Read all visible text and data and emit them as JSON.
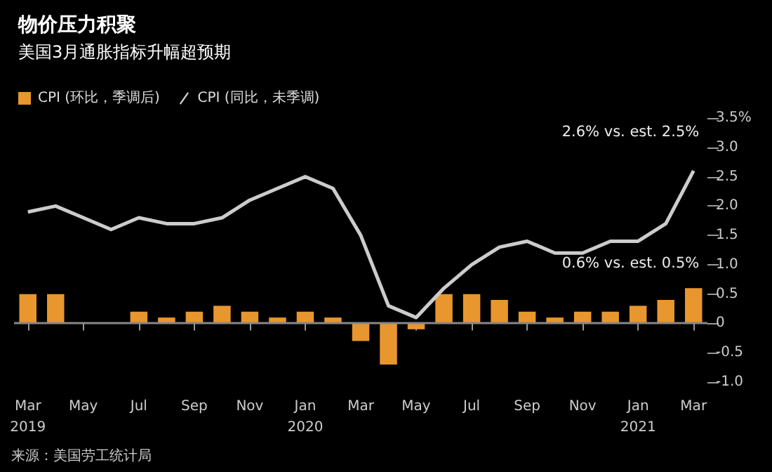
{
  "chart_data": {
    "type": "bar",
    "title": "物价压力积聚",
    "subtitle": "美国3月通胀指标升幅超预期",
    "categories": [
      "Mar\n2019",
      null,
      "May",
      null,
      "Jul",
      null,
      "Sep",
      null,
      "Nov",
      null,
      "Jan\n2020",
      null,
      "Mar",
      null,
      "May",
      null,
      "Jul",
      null,
      "Sep",
      null,
      "Nov",
      null,
      "Jan\n2021",
      null,
      "Mar"
    ],
    "series": [
      {
        "name": "CPI (环比，季调后)",
        "color": "#e8962e",
        "values": [
          0.5,
          0.5,
          0.0,
          0.0,
          0.2,
          0.1,
          0.2,
          0.3,
          0.2,
          0.1,
          0.2,
          0.1,
          -0.3,
          -0.7,
          -0.1,
          0.5,
          0.5,
          0.4,
          0.2,
          0.1,
          0.2,
          0.2,
          0.3,
          0.4,
          0.6
        ]
      },
      {
        "name": "CPI (同比，未季调)",
        "type": "line",
        "color": "#cccccc",
        "values": [
          1.9,
          2.0,
          1.8,
          1.6,
          1.8,
          1.7,
          1.7,
          1.8,
          2.1,
          2.3,
          2.5,
          2.3,
          1.5,
          0.3,
          0.1,
          0.6,
          1.0,
          1.3,
          1.4,
          1.2,
          1.2,
          1.4,
          1.4,
          1.7,
          2.6
        ]
      }
    ],
    "ylim": [
      -1.0,
      3.5
    ],
    "yticks": [
      {
        "value": -1,
        "label": "-1.0"
      },
      -0.5,
      0,
      0.5,
      {
        "value": 1,
        "label": "1.0"
      },
      1.5,
      {
        "value": 2,
        "label": "2.0"
      },
      2.5,
      {
        "value": 3,
        "label": "3.0"
      },
      {
        "value": 3.5,
        "label": "3.5%"
      }
    ],
    "ref_lines": [
      {
        "axis": "y",
        "value": 0,
        "color": "#888888"
      }
    ],
    "annotations": [
      "2.6% vs. est. 2.5%",
      "0.6% vs. est. 0.5%",
      "来源：美国劳工统计局"
    ],
    "legend": "top left",
    "grid": false,
    "marker": "none",
    "line_style": "solid"
  }
}
